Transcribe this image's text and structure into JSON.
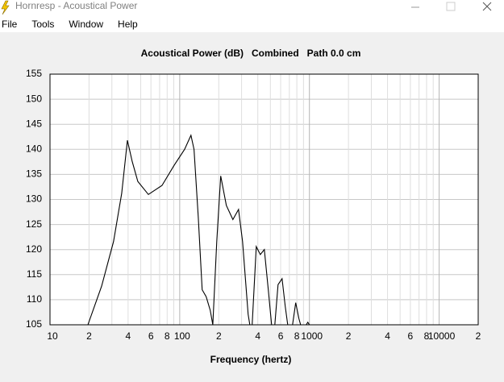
{
  "window": {
    "title": "Hornresp - Acoustical Power"
  },
  "menu": [
    "File",
    "Tools",
    "Window",
    "Help"
  ],
  "chart_data": {
    "type": "line",
    "title": "Acoustical Power (dB)   Combined   Path 0.0 cm",
    "x_label": "Frequency (hertz)",
    "x_scale": "log",
    "grid": true,
    "xlim": [
      10,
      20000
    ],
    "ylim": [
      105,
      155
    ],
    "yticks": [
      105,
      110,
      115,
      120,
      125,
      130,
      135,
      140,
      145,
      150,
      155
    ],
    "xticks": [
      10,
      {
        "value": 20,
        "label": "2"
      },
      {
        "value": 40,
        "label": "4"
      },
      {
        "value": 60,
        "label": "6"
      },
      {
        "value": 80,
        "label": "8"
      },
      100,
      {
        "value": 200,
        "label": "2"
      },
      {
        "value": 400,
        "label": "4"
      },
      {
        "value": 600,
        "label": "6"
      },
      {
        "value": 800,
        "label": "8"
      },
      1000,
      {
        "value": 2000,
        "label": "2"
      },
      {
        "value": 4000,
        "label": "4"
      },
      {
        "value": 6000,
        "label": "6"
      },
      {
        "value": 8000,
        "label": "8"
      },
      10000,
      {
        "value": 20000,
        "label": "2"
      }
    ],
    "xminor": [
      30,
      50,
      70,
      90,
      300,
      500,
      700,
      900,
      3000,
      5000,
      7000,
      9000
    ],
    "series": [
      {
        "color": "#000000",
        "x": [
          19.6,
          25.0,
          30.9,
          35.7,
          39.5,
          43.0,
          47.5,
          57.3,
          73.0,
          90.5,
          109,
          122,
          129,
          139,
          149,
          160,
          172,
          180,
          193,
          207,
          229,
          257,
          284,
          305,
          337,
          347,
          355,
          362,
          389,
          418,
          449,
          482,
          511,
          526,
          541,
          573,
          615,
          651,
          680,
          710,
          741,
          784,
          830,
          855,
          890,
          944,
          972,
          1000
        ],
        "values": [
          105,
          112.7,
          121.6,
          131.2,
          141.8,
          137.6,
          133.6,
          131.0,
          132.8,
          136.8,
          140,
          142.8,
          140,
          126.4,
          112,
          110.6,
          107.9,
          105,
          121.6,
          134.7,
          128.8,
          126,
          128,
          121.6,
          107.1,
          105,
          null,
          105,
          120.6,
          119,
          120,
          112,
          105,
          null,
          105,
          113,
          114.2,
          108.7,
          105,
          null,
          105,
          109.4,
          106.2,
          105,
          null,
          105,
          105.5,
          105
        ]
      }
    ]
  }
}
